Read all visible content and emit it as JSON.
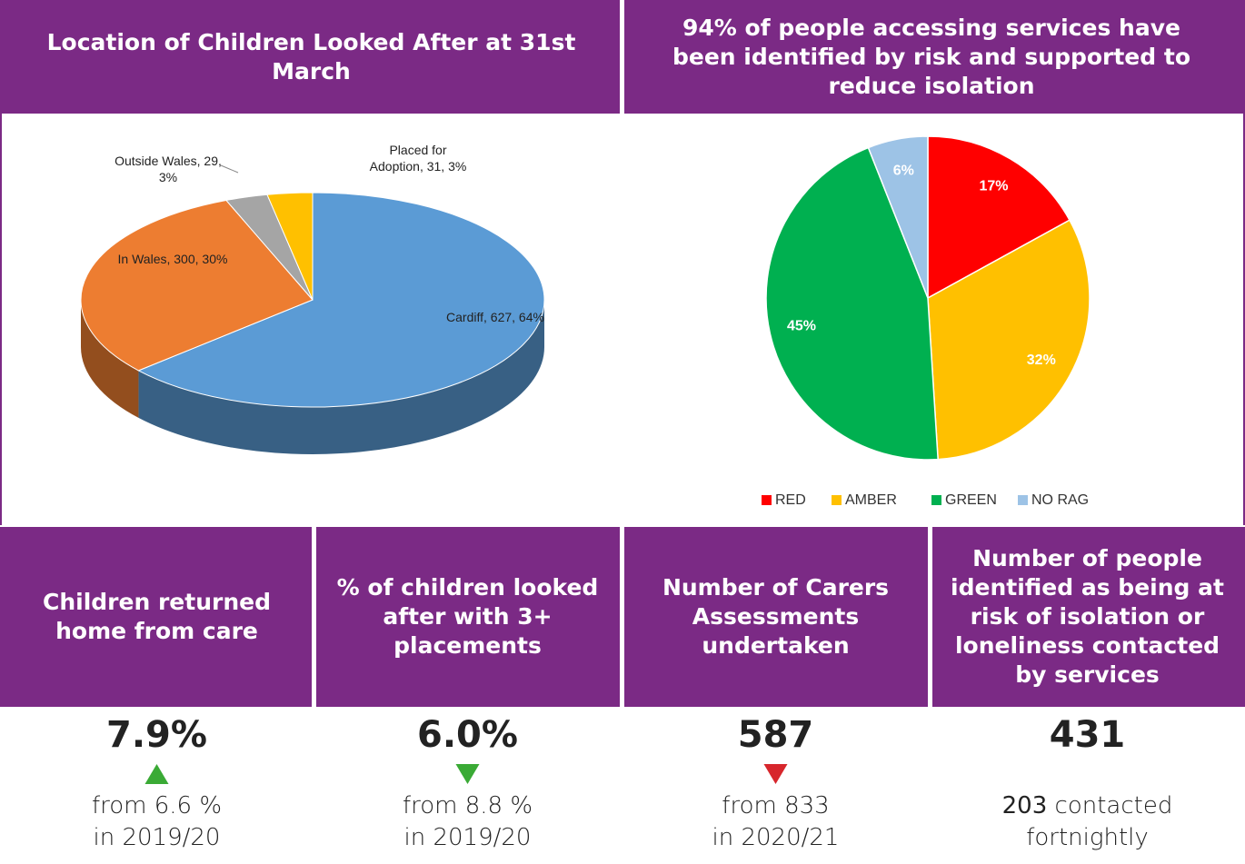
{
  "chart_data": [
    {
      "type": "pie3d",
      "title": "Location of Children Looked After at 31st March",
      "categories": [
        "Cardiff",
        "In Wales",
        "Outside Wales",
        "Placed for Adoption"
      ],
      "values": [
        627,
        300,
        29,
        31
      ],
      "value_labels": [
        "Cardiff, 627, 64%",
        "In Wales, 300, 30%",
        "Outside Wales, 29, 3%",
        "Placed for Adoption, 31, 3%"
      ],
      "colors": [
        "#5b9bd5",
        "#ed7d31",
        "#a5a5a5",
        "#ffc000"
      ]
    },
    {
      "type": "pie",
      "title": "94% of people accessing services have been identified by risk and supported to reduce isolation",
      "categories": [
        "RED",
        "AMBER",
        "GREEN",
        "NO RAG"
      ],
      "values": [
        17,
        32,
        45,
        6
      ],
      "value_labels": [
        "17%",
        "32%",
        "45%",
        "6%"
      ],
      "colors": [
        "#ff0000",
        "#ffc000",
        "#00b050",
        "#9dc3e6"
      ],
      "legend": "bottom"
    }
  ],
  "stats": [
    {
      "title": "Children returned home from care",
      "value": "7.9%",
      "arrow": "up",
      "arrow_color": "#3aaa35",
      "note": [
        "from 6.6 %",
        "in 2019/20"
      ]
    },
    {
      "title": "% of children looked after with 3+ placements",
      "value": "6.0%",
      "arrow": "down",
      "arrow_color": "#3aaa35",
      "note": [
        "from 8.8 %",
        "in 2019/20"
      ]
    },
    {
      "title": "Number of Carers Assessments undertaken",
      "value": "587",
      "arrow": "down",
      "arrow_color": "#d7262c",
      "note": [
        "from 833",
        "in 2020/21"
      ]
    },
    {
      "title": "Number of people identified as being at risk of isolation or loneliness contacted by services",
      "value": "431",
      "note_bold": "203",
      "note": [
        "contacted",
        "fortnightly"
      ]
    }
  ]
}
